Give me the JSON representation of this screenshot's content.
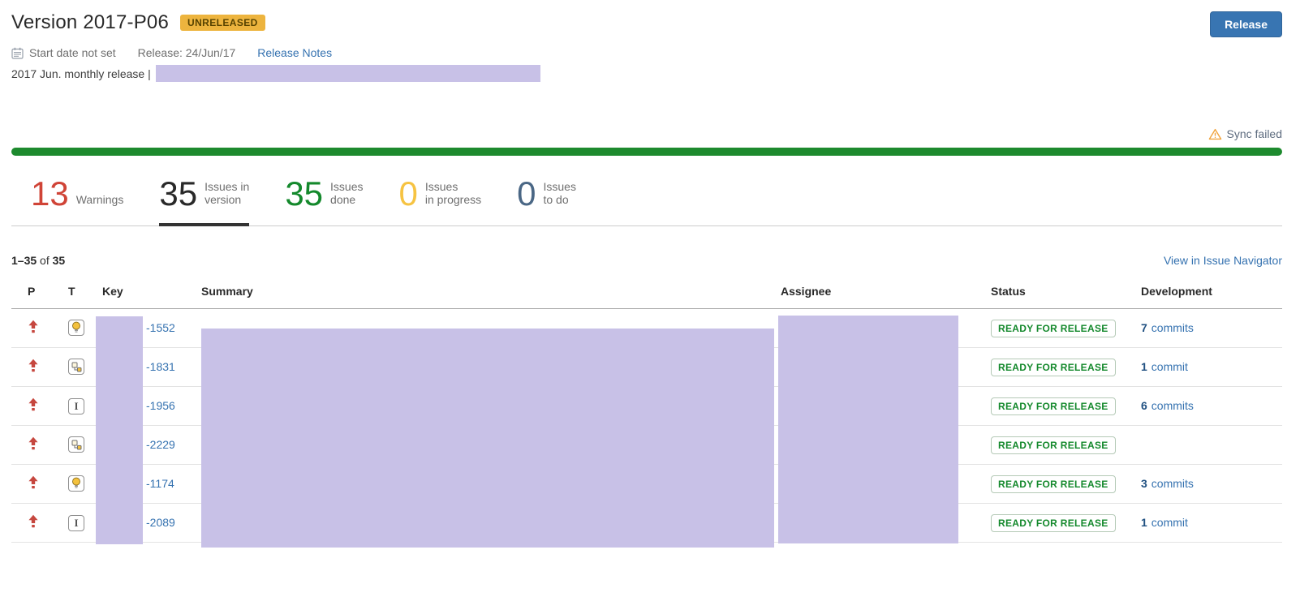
{
  "page": {
    "title": "Version 2017-P06",
    "status_lozenge": "UNRELEASED",
    "release_button": "Release",
    "meta": {
      "start_date": "Start date not set",
      "release_date": "Release: 24/Jun/17",
      "release_notes_link": "Release Notes"
    },
    "description_prefix": "2017 Jun. monthly release |",
    "sync_status": "Sync failed"
  },
  "stats": [
    {
      "value": "13",
      "label_lines": [
        "Warnings"
      ],
      "color": "#d04437",
      "active": false
    },
    {
      "value": "35",
      "label_lines": [
        "Issues in",
        "version"
      ],
      "color": "#292929",
      "active": true
    },
    {
      "value": "35",
      "label_lines": [
        "Issues",
        "done"
      ],
      "color": "#14892c",
      "active": false
    },
    {
      "value": "0",
      "label_lines": [
        "Issues",
        "in progress"
      ],
      "color": "#f6c342",
      "active": false
    },
    {
      "value": "0",
      "label_lines": [
        "Issues",
        "to do"
      ],
      "color": "#4a6785",
      "active": false
    }
  ],
  "issues": {
    "counts": {
      "range": "1–35",
      "separator": " of ",
      "total": "35"
    },
    "view_link": "View in Issue Navigator",
    "columns": [
      "P",
      "T",
      "Key",
      "Summary",
      "Assignee",
      "Status",
      "Development"
    ],
    "rows": [
      {
        "priority": "high",
        "type": "improvement",
        "key": "-1552",
        "status": "READY FOR RELEASE",
        "dev_count": "7",
        "dev_label": "commits"
      },
      {
        "priority": "high",
        "type": "subtask",
        "key": "-1831",
        "status": "READY FOR RELEASE",
        "dev_count": "1",
        "dev_label": "commit"
      },
      {
        "priority": "high",
        "type": "item",
        "key": "-1956",
        "status": "READY FOR RELEASE",
        "dev_count": "6",
        "dev_label": "commits"
      },
      {
        "priority": "high",
        "type": "subtask",
        "key": "-2229",
        "status": "READY FOR RELEASE",
        "dev_count": "",
        "dev_label": ""
      },
      {
        "priority": "high",
        "type": "improvement",
        "key": "-1174",
        "status": "READY FOR RELEASE",
        "dev_count": "3",
        "dev_label": "commits"
      },
      {
        "priority": "high",
        "type": "item",
        "key": "-2089",
        "status": "READY FOR RELEASE",
        "dev_count": "1",
        "dev_label": "commit"
      }
    ]
  },
  "colors": {
    "progress_green": "#1d8a2e",
    "redaction_purple": "#c8c1e7",
    "lozenge_bg": "#edb43e",
    "lozenge_text": "#574300",
    "button_blue": "#3875b2",
    "link_blue": "#3572b0",
    "status_green": "#14892c",
    "priority_red": "#c6473f",
    "warning_orange": "#f1a33c"
  }
}
